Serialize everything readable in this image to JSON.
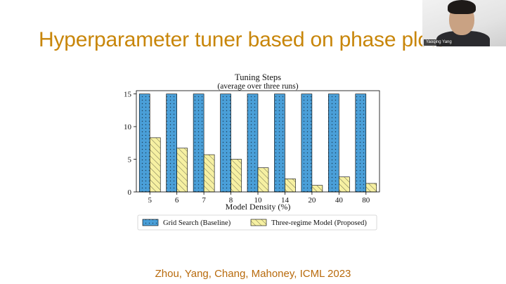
{
  "slide": {
    "title": "Hyperparameter tuner based on phase plots",
    "citation": "Zhou, Yang, Chang, Mahoney, ICML 2023"
  },
  "webcam": {
    "name": "Yaoqing Yang"
  },
  "colors": {
    "title": "#c8860a",
    "citation": "#b86a0c",
    "grid_search": "#4a9fd8",
    "three_regime": "#f6f0a2"
  },
  "chart_data": {
    "type": "bar",
    "title": "Tuning Steps",
    "subtitle": "(average over three runs)",
    "xlabel": "Model Density (%)",
    "ylabel": "",
    "categories": [
      "5",
      "6",
      "7",
      "8",
      "10",
      "14",
      "20",
      "40",
      "80"
    ],
    "ylim": [
      0,
      15.5
    ],
    "yticks": [
      0,
      5,
      10,
      15
    ],
    "grid": false,
    "legend_position": "bottom",
    "series": [
      {
        "name": "Grid Search (Baseline)",
        "color": "#4a9fd8",
        "pattern": "dots",
        "values": [
          15,
          15,
          15,
          15,
          15,
          15,
          15,
          15,
          15
        ]
      },
      {
        "name": "Three-regime Model (Proposed)",
        "color": "#f6f0a2",
        "pattern": "hatch",
        "values": [
          8.3,
          6.7,
          5.7,
          5.0,
          3.7,
          2.0,
          1.0,
          2.3,
          1.3
        ]
      }
    ]
  }
}
